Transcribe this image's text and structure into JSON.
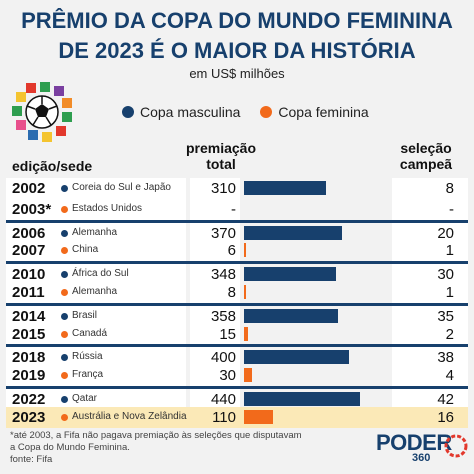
{
  "header": {
    "title_line1": "PRÊMIO DA COPA DO MUNDO FEMININA",
    "title_line2": "DE 2023 É O MAIOR DA HISTÓRIA",
    "subtitle": "em US$ milhões"
  },
  "legend": {
    "masculina": "Copa masculina",
    "feminina": "Copa feminina"
  },
  "columns": {
    "edicao": "edição/sede",
    "premio_l1": "premiação",
    "premio_l2": "total",
    "selecao_l1": "seleção",
    "selecao_l2": "campeã"
  },
  "colors": {
    "masculina": "#17406d",
    "feminina": "#f26a1b",
    "highlight": "#fbe9b7"
  },
  "chart_data": {
    "type": "bar",
    "title": "PRÊMIO DA COPA DO MUNDO FEMININA DE 2023 É O MAIOR DA HISTÓRIA",
    "subtitle": "em US$ milhões",
    "series": [
      {
        "name": "Copa masculina",
        "color": "#17406d"
      },
      {
        "name": "Copa feminina",
        "color": "#f26a1b"
      }
    ],
    "rows": [
      {
        "edicao": "2002",
        "sede": "Coreia do Sul e Japão",
        "tipo": "masculina",
        "premiacao": 310,
        "premiacao_label": "310",
        "campea": "8"
      },
      {
        "edicao": "2003*",
        "sede": "Estados Unidos",
        "tipo": "feminina",
        "premiacao": null,
        "premiacao_label": "-",
        "campea": "-"
      },
      {
        "edicao": "2006",
        "sede": "Alemanha",
        "tipo": "masculina",
        "premiacao": 370,
        "premiacao_label": "370",
        "campea": "20"
      },
      {
        "edicao": "2007",
        "sede": "China",
        "tipo": "feminina",
        "premiacao": 6,
        "premiacao_label": "6",
        "campea": "1"
      },
      {
        "edicao": "2010",
        "sede": "África do Sul",
        "tipo": "masculina",
        "premiacao": 348,
        "premiacao_label": "348",
        "campea": "30"
      },
      {
        "edicao": "2011",
        "sede": "Alemanha",
        "tipo": "feminina",
        "premiacao": 8,
        "premiacao_label": "8",
        "campea": "1"
      },
      {
        "edicao": "2014",
        "sede": "Brasil",
        "tipo": "masculina",
        "premiacao": 358,
        "premiacao_label": "358",
        "campea": "35"
      },
      {
        "edicao": "2015",
        "sede": "Canadá",
        "tipo": "feminina",
        "premiacao": 15,
        "premiacao_label": "15",
        "campea": "2"
      },
      {
        "edicao": "2018",
        "sede": "Rússia",
        "tipo": "masculina",
        "premiacao": 400,
        "premiacao_label": "400",
        "campea": "38"
      },
      {
        "edicao": "2019",
        "sede": "França",
        "tipo": "feminina",
        "premiacao": 30,
        "premiacao_label": "30",
        "campea": "4"
      },
      {
        "edicao": "2022",
        "sede": "Qatar",
        "tipo": "masculina",
        "premiacao": 440,
        "premiacao_label": "440",
        "campea": "42"
      },
      {
        "edicao": "2023",
        "sede": "Austrália e Nova Zelândia",
        "tipo": "feminina",
        "premiacao": 110,
        "premiacao_label": "110",
        "campea": "16",
        "highlight": true
      }
    ],
    "xlim": [
      0,
      440
    ]
  },
  "footer": {
    "note_line1": "*até 2003, a Fifa não pagava premiação às seleções que disputavam",
    "note_line2": "a Copa do Mundo Feminina.",
    "source": "fonte: Fifa",
    "brand": "PODER",
    "brand_sub": "360"
  }
}
